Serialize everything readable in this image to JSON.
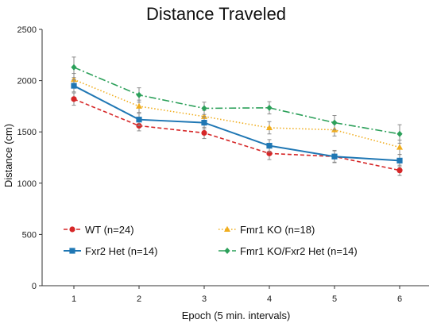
{
  "chart_data": {
    "type": "line",
    "title": "Distance Traveled",
    "xlabel": "Epoch (5 min. intervals)",
    "ylabel": "Distance (cm)",
    "categories": [
      "1",
      "2",
      "3",
      "4",
      "5",
      "6"
    ],
    "ylim": [
      0,
      2500
    ],
    "yticks": [
      "0",
      "500",
      "1000",
      "1500",
      "2000",
      "2500"
    ],
    "grid": false,
    "legend_position": "lower-left",
    "series": [
      {
        "name": "WT (n=24)",
        "color": "#d62728",
        "marker": "circle",
        "linestyle": "dashed",
        "values": [
          1820,
          1560,
          1490,
          1290,
          1260,
          1125
        ],
        "errors": [
          60,
          50,
          55,
          60,
          55,
          50
        ]
      },
      {
        "name": "Fmr1 KO (n=18)",
        "color": "#f0ad1e",
        "marker": "triangle",
        "linestyle": "dotted",
        "values": [
          2010,
          1750,
          1650,
          1540,
          1520,
          1350
        ],
        "errors": [
          60,
          60,
          60,
          60,
          60,
          70
        ]
      },
      {
        "name": "Fxr2 Het (n=14)",
        "color": "#1f77b4",
        "marker": "square",
        "linestyle": "solid",
        "values": [
          1950,
          1620,
          1590,
          1365,
          1260,
          1220
        ],
        "errors": [
          60,
          60,
          60,
          60,
          60,
          60
        ]
      },
      {
        "name": "Fmr1 KO/Fxr2 Het (n=14)",
        "color": "#2ca05a",
        "marker": "diamond",
        "linestyle": "dashdot",
        "values": [
          2130,
          1860,
          1730,
          1735,
          1590,
          1480
        ],
        "errors": [
          100,
          70,
          60,
          60,
          70,
          90
        ]
      }
    ]
  }
}
